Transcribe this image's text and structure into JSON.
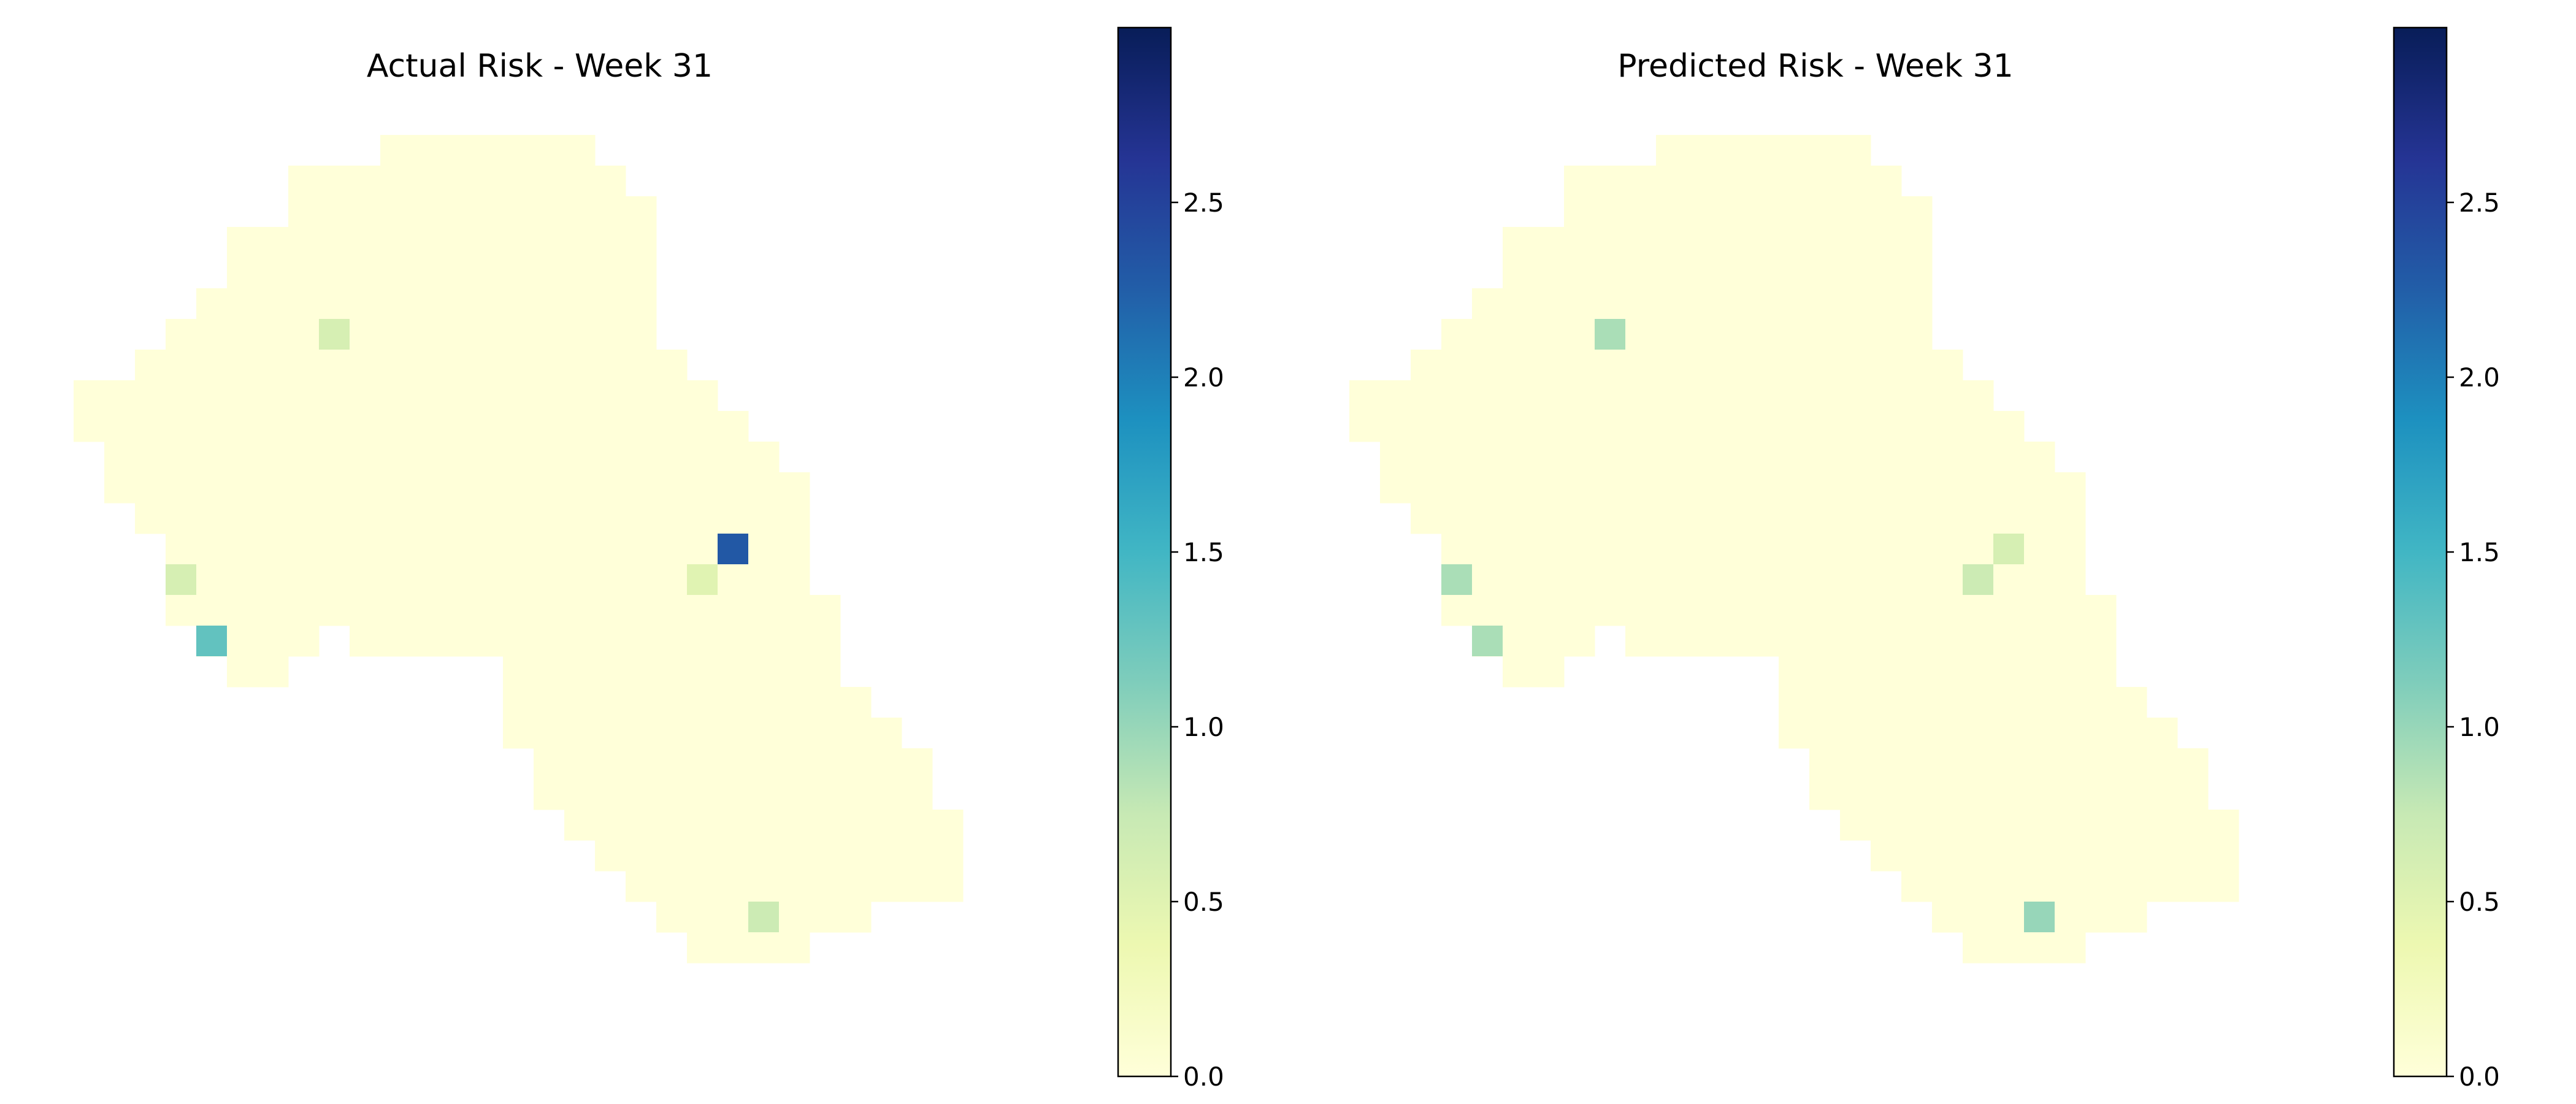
{
  "chart_data": [
    {
      "type": "heatmap",
      "title": "Actual Risk - Week 31",
      "colormap": "YlGnBu",
      "colorbar": {
        "vmin": 0.0,
        "vmax": 3.0,
        "ticks": [
          "0.0",
          "0.5",
          "1.0",
          "1.5",
          "2.0",
          "2.5"
        ]
      },
      "background_value": 0.0,
      "hotspots": [
        {
          "row": 6,
          "col": 9,
          "value": 0.6
        },
        {
          "row": 14,
          "col": 4,
          "value": 0.6
        },
        {
          "row": 16,
          "col": 5,
          "value": 1.3
        },
        {
          "row": 13,
          "col": 22,
          "value": 2.3
        },
        {
          "row": 14,
          "col": 21,
          "value": 0.5
        },
        {
          "row": 25,
          "col": 23,
          "value": 0.7
        }
      ]
    },
    {
      "type": "heatmap",
      "title": "Predicted Risk - Week 31",
      "colormap": "YlGnBu",
      "colorbar": {
        "vmin": 0.0,
        "vmax": 3.0,
        "ticks": [
          "0.0",
          "0.5",
          "1.0",
          "1.5",
          "2.0",
          "2.5"
        ]
      },
      "background_value": 0.0,
      "hotspots": [
        {
          "row": 6,
          "col": 9,
          "value": 0.9
        },
        {
          "row": 14,
          "col": 4,
          "value": 0.9
        },
        {
          "row": 16,
          "col": 5,
          "value": 0.9
        },
        {
          "row": 13,
          "col": 22,
          "value": 0.6
        },
        {
          "row": 14,
          "col": 21,
          "value": 0.7
        },
        {
          "row": 25,
          "col": 23,
          "value": 1.0
        }
      ]
    }
  ]
}
